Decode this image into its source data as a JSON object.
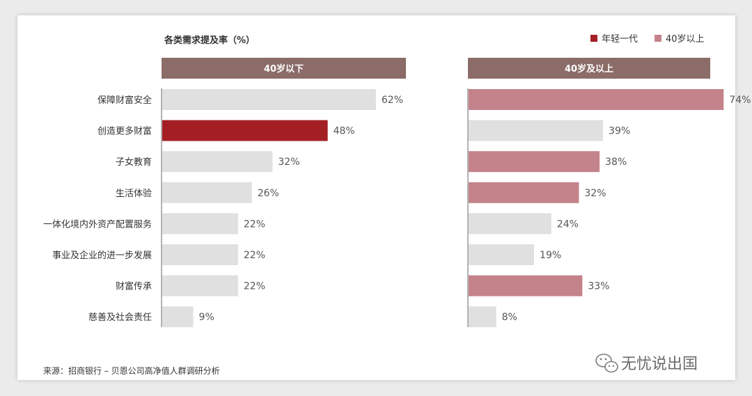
{
  "chart_data": {
    "type": "bar",
    "orientation": "horizontal",
    "title": "各类需求提及率（%）",
    "value_unit": "%",
    "categories": [
      "保障财富安全",
      "创造更多财富",
      "子女教育",
      "生活体验",
      "一体化境内外资产配置服务",
      "事业及企业的进一步发展",
      "财富传承",
      "慈善及社会责任"
    ],
    "panels": [
      {
        "title": "40岁以下",
        "values": [
          62,
          48,
          32,
          26,
          22,
          22,
          22,
          9
        ],
        "highlighted": [
          false,
          true,
          false,
          false,
          false,
          false,
          false,
          false
        ],
        "highlight_color": "#a31f24",
        "base_color": "#e0e0e0"
      },
      {
        "title": "40岁及以上",
        "values": [
          74,
          39,
          38,
          32,
          24,
          19,
          33,
          8
        ],
        "highlighted": [
          true,
          false,
          true,
          true,
          false,
          false,
          true,
          false
        ],
        "highlight_color": "#c4828a",
        "base_color": "#e0e0e0"
      }
    ],
    "legend": [
      {
        "label": "年轻一代",
        "color": "#a31f24"
      },
      {
        "label": "40岁以上",
        "color": "#c4828a"
      }
    ],
    "legend_position": "top-right",
    "header_color": "#8c6c68",
    "source": "来源：招商银行 – 贝恩公司高净值人群调研分析",
    "watermark": "无忧说出国"
  }
}
